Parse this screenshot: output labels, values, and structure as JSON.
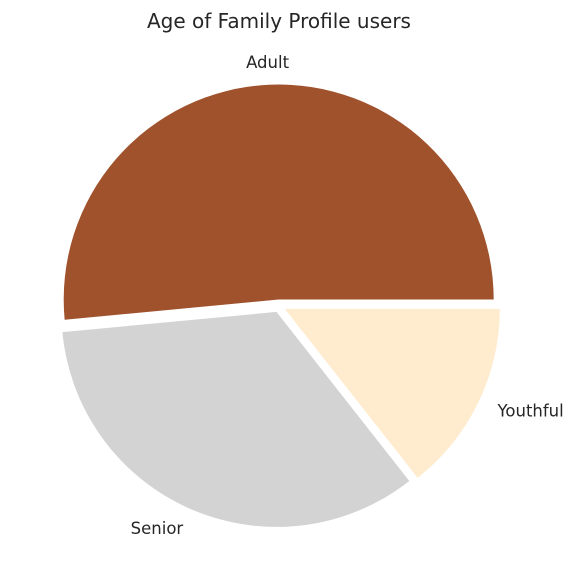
{
  "chart_data": {
    "type": "pie",
    "title": "Age of Family Profile users",
    "labels": [
      "Adult",
      "Senior",
      "Youthful"
    ],
    "values": [
      51.5,
      34.1,
      14.4
    ],
    "colors": [
      "#a0522d",
      "#d3d3d3",
      "#ffebcd"
    ],
    "explode": [
      0.03,
      0.03,
      0.03
    ],
    "start_angle_deg": 0,
    "direction": "counterclockwise",
    "legend": "none"
  }
}
